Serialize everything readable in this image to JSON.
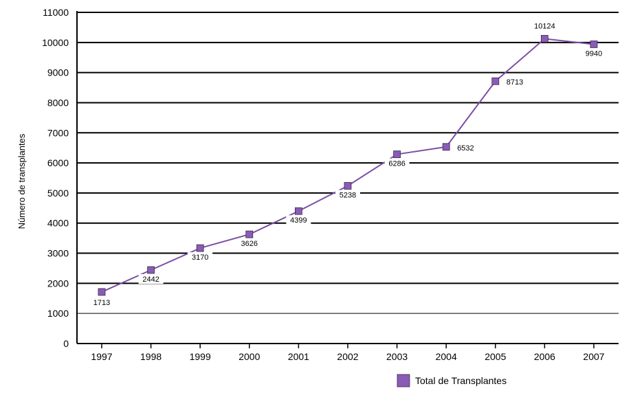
{
  "chart_data": {
    "type": "line",
    "ylabel": "Número de transplantes",
    "xlabel": "",
    "categories": [
      "1997",
      "1998",
      "1999",
      "2000",
      "2001",
      "2002",
      "2003",
      "2004",
      "2005",
      "2006",
      "2007"
    ],
    "series": [
      {
        "name": "Total de Transplantes",
        "values": [
          1713,
          2442,
          3170,
          3626,
          4399,
          5238,
          6286,
          6532,
          8713,
          10124,
          9940
        ],
        "color": "#7b4fa3",
        "marker_color": "#8a5cb5"
      }
    ],
    "ylim": [
      0,
      11000
    ],
    "yticks": [
      0,
      1000,
      2000,
      3000,
      4000,
      5000,
      6000,
      7000,
      8000,
      9000,
      10000,
      11000
    ],
    "grid": true,
    "legend": "bottom-right"
  }
}
